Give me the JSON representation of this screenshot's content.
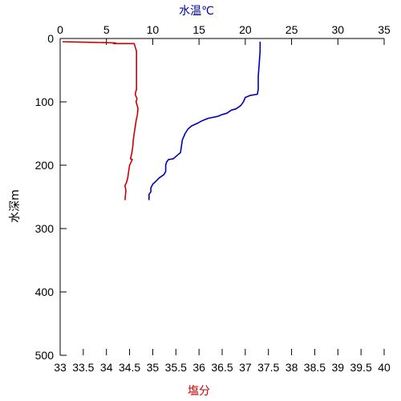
{
  "chart_data": {
    "type": "line",
    "title": "",
    "grid": false,
    "legend": "none",
    "axes": {
      "depth": {
        "label": "水深m",
        "range": [
          0,
          500
        ],
        "ticks": [
          0,
          100,
          200,
          300,
          400,
          500
        ],
        "inverted": true,
        "color": "#000000"
      },
      "temperature": {
        "label": "水温℃",
        "position": "top",
        "range": [
          0,
          35
        ],
        "ticks": [
          0,
          5,
          10,
          15,
          20,
          25,
          30,
          35
        ],
        "color": "#0000aa"
      },
      "salinity": {
        "label": "塩分",
        "position": "bottom",
        "range": [
          33,
          40
        ],
        "ticks": [
          "33",
          "33.5",
          "34",
          "34.5",
          "35",
          "35.5",
          "36",
          "36.5",
          "37",
          "37.5",
          "38",
          "38.5",
          "39",
          "39.5",
          "40"
        ],
        "color": "#cc0000"
      }
    },
    "series": [
      {
        "axis": "temperature",
        "color": "#0000bb",
        "points": [
          [
            21.6,
            5
          ],
          [
            21.6,
            20
          ],
          [
            21.5,
            40
          ],
          [
            21.4,
            60
          ],
          [
            21.4,
            80
          ],
          [
            21.3,
            88
          ],
          [
            20.5,
            90
          ],
          [
            20.0,
            93
          ],
          [
            19.8,
            100
          ],
          [
            19.5,
            106
          ],
          [
            19.0,
            111
          ],
          [
            18.5,
            113
          ],
          [
            18.0,
            118
          ],
          [
            17.5,
            120
          ],
          [
            17.0,
            123
          ],
          [
            16.0,
            126
          ],
          [
            15.3,
            130
          ],
          [
            14.8,
            134
          ],
          [
            14.2,
            138
          ],
          [
            13.8,
            143
          ],
          [
            13.5,
            150
          ],
          [
            13.2,
            160
          ],
          [
            13.1,
            170
          ],
          [
            13.0,
            180
          ],
          [
            12.6,
            185
          ],
          [
            12.2,
            190
          ],
          [
            11.7,
            191
          ],
          [
            11.5,
            195
          ],
          [
            11.4,
            200
          ],
          [
            11.4,
            210
          ],
          [
            11.2,
            215
          ],
          [
            10.7,
            220
          ],
          [
            10.3,
            226
          ],
          [
            10.0,
            230
          ],
          [
            9.8,
            236
          ],
          [
            9.8,
            242
          ],
          [
            9.6,
            246
          ],
          [
            9.6,
            255
          ]
        ]
      },
      {
        "axis": "salinity",
        "color": "#cc0000",
        "points": [
          [
            33.05,
            5
          ],
          [
            33.6,
            6
          ],
          [
            34.2,
            7
          ],
          [
            34.15,
            8
          ],
          [
            34.6,
            8
          ],
          [
            34.65,
            20
          ],
          [
            34.65,
            40
          ],
          [
            34.65,
            60
          ],
          [
            34.65,
            80
          ],
          [
            34.62,
            88
          ],
          [
            34.66,
            95
          ],
          [
            34.64,
            100
          ],
          [
            34.68,
            110
          ],
          [
            34.67,
            120
          ],
          [
            34.64,
            130
          ],
          [
            34.62,
            140
          ],
          [
            34.6,
            150
          ],
          [
            34.58,
            160
          ],
          [
            34.57,
            170
          ],
          [
            34.55,
            180
          ],
          [
            34.52,
            190
          ],
          [
            34.56,
            191
          ],
          [
            34.5,
            200
          ],
          [
            34.48,
            210
          ],
          [
            34.46,
            220
          ],
          [
            34.43,
            228
          ],
          [
            34.4,
            232
          ],
          [
            34.42,
            240
          ],
          [
            34.4,
            255
          ]
        ]
      }
    ]
  }
}
